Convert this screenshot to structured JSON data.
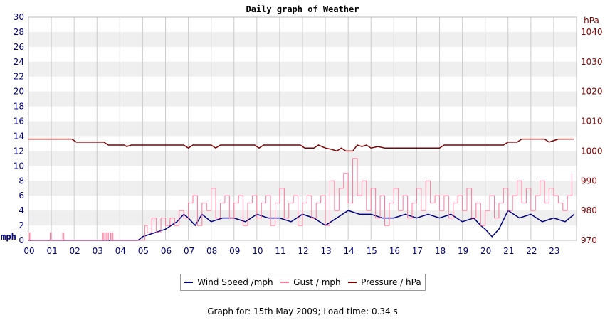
{
  "chart_data": {
    "type": "line",
    "title": "Daily graph of Weather",
    "left_axis": {
      "unit_label": "mph",
      "ylim": [
        0,
        30
      ],
      "ticks": [
        0,
        2,
        4,
        6,
        8,
        10,
        12,
        14,
        16,
        18,
        20,
        22,
        24,
        26,
        28,
        30
      ]
    },
    "right_axis": {
      "unit_label": "hPa",
      "ylim": [
        970,
        1045
      ],
      "ticks": [
        970,
        980,
        990,
        1000,
        1010,
        1020,
        1030,
        1040
      ]
    },
    "x_ticks": [
      "00",
      "01",
      "02",
      "03",
      "04",
      "05",
      "06",
      "07",
      "08",
      "09",
      "10",
      "11",
      "12",
      "13",
      "14",
      "15",
      "16",
      "17",
      "18",
      "19",
      "20",
      "21",
      "22",
      "23"
    ],
    "x_range_hours": [
      0,
      24
    ],
    "grid": true,
    "legend_placement": "bottom",
    "colors": {
      "wind": "#000080",
      "gust": "#ff7799",
      "pressure": "#800000",
      "axis_left": "#000080",
      "axis_right": "#800000",
      "band": "#efefef"
    },
    "series": [
      {
        "name": "Wind Speed /mph",
        "key": "wind",
        "x": [
          0,
          1,
          2,
          3,
          4,
          4.8,
          5,
          5.5,
          6,
          6.5,
          6.8,
          7,
          7.3,
          7.6,
          8,
          8.5,
          9,
          9.5,
          10,
          10.5,
          11,
          11.5,
          12,
          12.5,
          13,
          13.5,
          14,
          14.5,
          15,
          15.5,
          16,
          16.5,
          17,
          17.5,
          18,
          18.5,
          19,
          19.5,
          19.8,
          20,
          20.3,
          20.6,
          21,
          21.5,
          22,
          22.5,
          23,
          23.5,
          23.9
        ],
        "values": [
          0,
          0,
          0,
          0,
          0,
          0,
          0.5,
          1,
          1.5,
          2.5,
          3.5,
          3,
          2,
          3.5,
          2.5,
          3,
          3,
          2.5,
          3.5,
          3,
          3,
          2.5,
          3.5,
          3,
          2,
          3,
          4,
          3.5,
          3.5,
          3,
          3,
          3.5,
          3,
          3.5,
          3,
          3.5,
          2.5,
          3,
          2,
          1.5,
          0.5,
          1.5,
          4,
          3,
          3.5,
          2.5,
          3,
          2.5,
          3.5
        ]
      },
      {
        "name": "Gust / mph",
        "key": "gust",
        "x": [
          0,
          0.05,
          0.1,
          0.9,
          0.95,
          1,
          1.45,
          1.5,
          1.55,
          3.2,
          3.25,
          3.3,
          3.4,
          3.45,
          3.5,
          3.6,
          3.65,
          3.7,
          5.0,
          5.1,
          5.2,
          5.4,
          5.6,
          5.8,
          6.0,
          6.2,
          6.4,
          6.6,
          6.8,
          7.0,
          7.2,
          7.4,
          7.6,
          7.8,
          8.0,
          8.2,
          8.4,
          8.6,
          8.8,
          9.0,
          9.2,
          9.4,
          9.6,
          9.8,
          10.0,
          10.2,
          10.4,
          10.6,
          10.8,
          11.0,
          11.2,
          11.4,
          11.6,
          11.8,
          12.0,
          12.2,
          12.4,
          12.6,
          12.8,
          13.0,
          13.2,
          13.4,
          13.6,
          13.8,
          14.0,
          14.2,
          14.4,
          14.6,
          14.8,
          15.0,
          15.2,
          15.4,
          15.6,
          15.8,
          16.0,
          16.2,
          16.4,
          16.6,
          16.8,
          17.0,
          17.2,
          17.4,
          17.6,
          17.8,
          18.0,
          18.2,
          18.4,
          18.6,
          18.8,
          19.0,
          19.2,
          19.4,
          19.6,
          19.8,
          20.0,
          20.2,
          20.4,
          20.6,
          20.8,
          21.0,
          21.2,
          21.4,
          21.6,
          21.8,
          22.0,
          22.2,
          22.4,
          22.6,
          22.8,
          23.0,
          23.2,
          23.4,
          23.6,
          23.8
        ],
        "values": [
          0,
          1,
          0,
          0,
          1,
          0,
          0,
          1,
          0,
          0,
          1,
          0,
          1,
          0,
          1,
          0,
          1,
          0,
          0,
          2,
          1,
          3,
          1,
          3,
          2,
          3,
          2,
          4,
          3,
          5,
          6,
          2,
          5,
          4,
          7,
          3,
          5,
          6,
          3,
          5,
          6,
          2,
          5,
          6,
          3,
          5,
          6,
          2,
          5,
          7,
          3,
          5,
          6,
          2,
          5,
          6,
          3,
          5,
          6,
          2,
          8,
          4,
          7,
          9,
          5,
          11,
          6,
          8,
          4,
          7,
          3,
          6,
          2,
          5,
          7,
          4,
          6,
          3,
          5,
          7,
          4,
          8,
          5,
          6,
          4,
          6,
          3,
          5,
          6,
          4,
          7,
          3,
          5,
          2,
          4,
          6,
          3,
          5,
          7,
          4,
          6,
          8,
          5,
          7,
          4,
          6,
          8,
          5,
          7,
          6,
          5,
          4,
          6,
          9
        ]
      },
      {
        "name": "Pressure / hPa",
        "key": "pressure",
        "x": [
          0,
          1.9,
          2.1,
          3.3,
          3.5,
          4.2,
          4.3,
          4.5,
          6.8,
          7.0,
          7.2,
          8.0,
          8.2,
          8.4,
          9.9,
          10.1,
          10.3,
          11.9,
          12.1,
          12.5,
          12.7,
          13.0,
          13.3,
          13.5,
          13.7,
          13.9,
          14.2,
          14.4,
          14.6,
          14.8,
          15.0,
          15.3,
          15.6,
          17.4,
          18.0,
          18.2,
          20.8,
          21.0,
          21.4,
          21.6,
          22.6,
          22.8,
          23.0,
          23.2,
          23.9
        ],
        "values": [
          1004,
          1004,
          1003,
          1003,
          1002,
          1002,
          1001.5,
          1002,
          1002,
          1001,
          1002,
          1002,
          1001,
          1002,
          1002,
          1001,
          1002,
          1002,
          1001,
          1001,
          1002,
          1001,
          1000.5,
          1000,
          1001,
          1000,
          1000,
          1002,
          1001.5,
          1002,
          1001,
          1001.5,
          1001,
          1001,
          1001,
          1002,
          1002,
          1003,
          1003,
          1004,
          1004,
          1003,
          1003.5,
          1004,
          1004
        ]
      }
    ]
  },
  "footer": "Graph for: 15th May 2009; Load time: 0.34 s"
}
